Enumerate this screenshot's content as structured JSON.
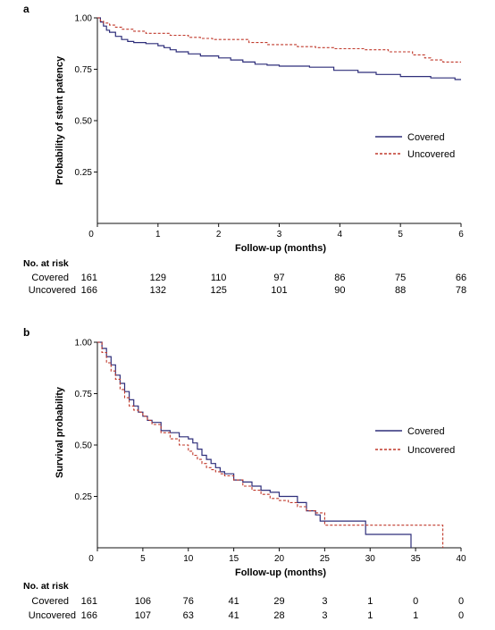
{
  "panels": [
    {
      "label": "a",
      "risk_title": "No. at risk",
      "risk_rows": [
        {
          "name": "Covered",
          "values": [
            "161",
            "129",
            "110",
            "97",
            "86",
            "75",
            "66"
          ]
        },
        {
          "name": "Uncovered",
          "values": [
            "166",
            "132",
            "125",
            "101",
            "90",
            "88",
            "78"
          ]
        }
      ]
    },
    {
      "label": "b",
      "risk_title": "No. at risk",
      "risk_rows": [
        {
          "name": "Covered",
          "values": [
            "161",
            "106",
            "76",
            "41",
            "29",
            "3",
            "1",
            "0",
            "0"
          ]
        },
        {
          "name": "Uncovered",
          "values": [
            "166",
            "107",
            "63",
            "41",
            "28",
            "3",
            "1",
            "1",
            "0"
          ]
        }
      ]
    }
  ],
  "colors": {
    "covered": "#2e2e7a",
    "uncovered": "#c0392b",
    "axis": "#111111"
  },
  "chart_data": [
    {
      "type": "line",
      "subtype": "kaplan-meier step",
      "xlabel": "Follow-up (months)",
      "ylabel": "Probability of stent patency",
      "xlim": [
        0,
        6
      ],
      "ylim": [
        0,
        1
      ],
      "xticks": [
        "0",
        "1",
        "2",
        "3",
        "4",
        "5",
        "6"
      ],
      "yticks": [
        "0.25",
        "0.50",
        "0.75",
        "1.00"
      ],
      "legend_position": "right-middle",
      "series": [
        {
          "name": "Covered",
          "style": "solid",
          "x": [
            0,
            0.05,
            0.1,
            0.15,
            0.2,
            0.3,
            0.4,
            0.5,
            0.6,
            0.8,
            1.0,
            1.1,
            1.2,
            1.3,
            1.5,
            1.7,
            2.0,
            2.2,
            2.4,
            2.6,
            2.8,
            3.0,
            3.5,
            3.9,
            4.3,
            4.6,
            5.0,
            5.5,
            5.9,
            6.0
          ],
          "y": [
            1.0,
            0.98,
            0.96,
            0.94,
            0.93,
            0.91,
            0.895,
            0.885,
            0.88,
            0.875,
            0.865,
            0.855,
            0.845,
            0.835,
            0.825,
            0.815,
            0.805,
            0.795,
            0.785,
            0.775,
            0.77,
            0.765,
            0.76,
            0.745,
            0.735,
            0.725,
            0.715,
            0.708,
            0.7,
            0.7
          ]
        },
        {
          "name": "Uncovered",
          "style": "dashed",
          "x": [
            0,
            0.05,
            0.1,
            0.2,
            0.3,
            0.4,
            0.6,
            0.8,
            1.2,
            1.5,
            1.7,
            1.9,
            2.5,
            2.8,
            3.3,
            3.6,
            3.9,
            4.4,
            4.8,
            5.2,
            5.4,
            5.5,
            5.7,
            6.0
          ],
          "y": [
            1.0,
            0.985,
            0.975,
            0.965,
            0.955,
            0.945,
            0.935,
            0.925,
            0.915,
            0.905,
            0.9,
            0.895,
            0.88,
            0.87,
            0.86,
            0.855,
            0.85,
            0.845,
            0.835,
            0.82,
            0.805,
            0.795,
            0.785,
            0.785
          ]
        }
      ]
    },
    {
      "type": "line",
      "subtype": "kaplan-meier step",
      "xlabel": "Follow-up (months)",
      "ylabel": "Survival probability",
      "xlim": [
        0,
        40
      ],
      "ylim": [
        0,
        1
      ],
      "xticks": [
        "0",
        "5",
        "10",
        "15",
        "20",
        "25",
        "30",
        "35",
        "40"
      ],
      "yticks": [
        "0.25",
        "0.50",
        "0.75",
        "1.00"
      ],
      "legend_position": "right-middle",
      "series": [
        {
          "name": "Covered",
          "style": "solid",
          "x": [
            0,
            0.5,
            1,
            1.5,
            2,
            2.5,
            3,
            3.5,
            4,
            4.5,
            5,
            5.5,
            6,
            7,
            8,
            9,
            10,
            10.5,
            11,
            11.5,
            12,
            12.5,
            13,
            13.5,
            14,
            15,
            16,
            17,
            18,
            19,
            20,
            21,
            22,
            23,
            24,
            24.5,
            29,
            29.5,
            34,
            34.5
          ],
          "y": [
            1.0,
            0.97,
            0.93,
            0.89,
            0.84,
            0.8,
            0.76,
            0.72,
            0.69,
            0.66,
            0.64,
            0.62,
            0.61,
            0.57,
            0.56,
            0.54,
            0.53,
            0.51,
            0.48,
            0.45,
            0.43,
            0.41,
            0.39,
            0.37,
            0.36,
            0.33,
            0.32,
            0.3,
            0.28,
            0.27,
            0.25,
            0.25,
            0.22,
            0.18,
            0.16,
            0.13,
            0.13,
            0.065,
            0.065,
            0.0
          ]
        },
        {
          "name": "Uncovered",
          "style": "dashed",
          "x": [
            0,
            0.5,
            1,
            1.5,
            2,
            2.5,
            3,
            3.5,
            4,
            4.5,
            5,
            5.5,
            6,
            7,
            8,
            9,
            10,
            10.5,
            11,
            11.5,
            12,
            12.5,
            13,
            13.5,
            14,
            15,
            16,
            17,
            18,
            19,
            20,
            21,
            22,
            23,
            24,
            25,
            26,
            37.5,
            38
          ],
          "y": [
            1.0,
            0.95,
            0.9,
            0.86,
            0.82,
            0.77,
            0.73,
            0.69,
            0.67,
            0.66,
            0.64,
            0.62,
            0.6,
            0.56,
            0.53,
            0.5,
            0.47,
            0.45,
            0.43,
            0.41,
            0.39,
            0.38,
            0.37,
            0.36,
            0.35,
            0.33,
            0.3,
            0.28,
            0.26,
            0.24,
            0.23,
            0.22,
            0.2,
            0.18,
            0.17,
            0.11,
            0.11,
            0.11,
            0.0
          ]
        }
      ]
    }
  ]
}
